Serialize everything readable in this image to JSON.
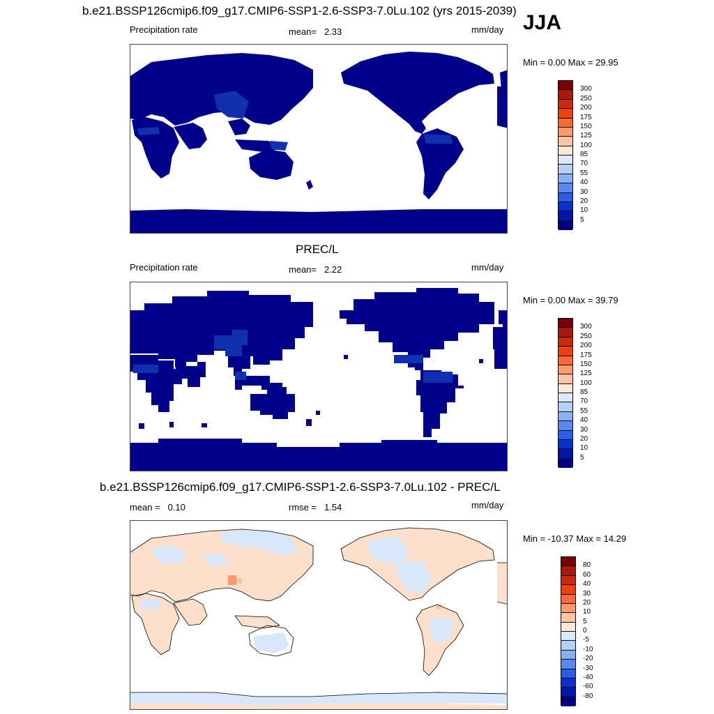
{
  "colors": {
    "land_precip": "#00008b",
    "wet_precip": "#1030b0",
    "diff_pos": "#fde0cc",
    "diff_neg": "#d8e8fa",
    "coast": "#000000"
  },
  "main_title": "b.e21.BSSP126cmip6.f09_g17.CMIP6-SSP1-2.6-SSP3-7.0Lu.102 (yrs 2015-2039)",
  "season": "JJA",
  "panel1": {
    "left_label": "Precipitation rate",
    "mean_label": "mean=",
    "mean_value": "2.33",
    "units": "mm/day",
    "range": "Min =   0.00 Max =  29.95"
  },
  "panel2": {
    "title": "PREC/L",
    "left_label": "Precipitation rate",
    "mean_label": "mean=",
    "mean_value": "2.22",
    "units": "mm/day",
    "range": "Min =   0.00 Max =  39.79"
  },
  "panel3": {
    "title": "b.e21.BSSP126cmip6.f09_g17.CMIP6-SSP1-2.6-SSP3-7.0Lu.102 - PREC/L",
    "mean_label": "mean =",
    "mean_value": "0.10",
    "rmse_label": "rmse =",
    "rmse_value": "1.54",
    "units": "mm/day",
    "range": "Min = -10.37 Max =  14.29"
  },
  "precip_scale": {
    "labels": [
      "300",
      "250",
      "200",
      "175",
      "150",
      "125",
      "100",
      "85",
      "70",
      "55",
      "40",
      "30",
      "20",
      "10",
      "5"
    ],
    "colors": [
      "#7a0000",
      "#a51a0a",
      "#cc2a10",
      "#f04010",
      "#f86a3a",
      "#fb9a6c",
      "#fdc4a4",
      "#fde8d8",
      "#dce9fb",
      "#b4cff8",
      "#8aaff4",
      "#5a88ee",
      "#2c5ce6",
      "#0a30d0",
      "#0016a8",
      "#000080"
    ]
  },
  "diff_scale": {
    "labels": [
      "80",
      "60",
      "40",
      "30",
      "20",
      "10",
      "5",
      "0",
      "-5",
      "-10",
      "-20",
      "-30",
      "-40",
      "-60",
      "-80"
    ],
    "colors": [
      "#7a0000",
      "#a51a0a",
      "#cc2a10",
      "#f04010",
      "#f86a3a",
      "#fb9a6c",
      "#fdc4a4",
      "#fde8d8",
      "#dce9fb",
      "#b4cff8",
      "#8aaff4",
      "#5a88ee",
      "#2c5ce6",
      "#0a30d0",
      "#0016a8",
      "#000080"
    ]
  }
}
